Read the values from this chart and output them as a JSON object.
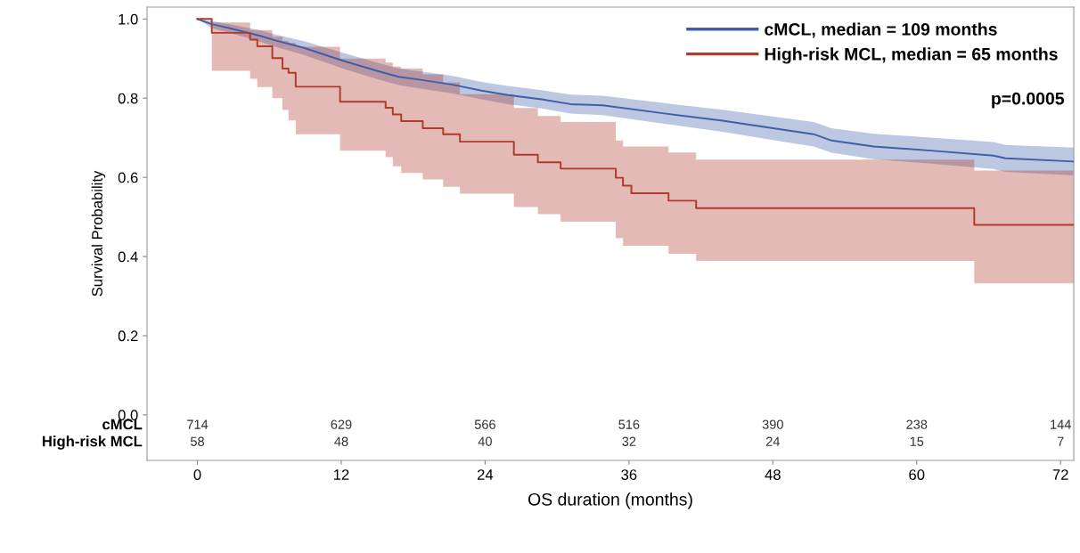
{
  "chart_data": {
    "type": "step",
    "xlabel": "OS duration (months)",
    "ylabel": "Survival Probability",
    "xlim": [
      -4.2,
      73.1
    ],
    "ylim": [
      -0.115,
      1.03
    ],
    "xticks": [
      0,
      12,
      24,
      36,
      48,
      60,
      72
    ],
    "yticks": [
      {
        "value": 0,
        "label": "0.0"
      },
      {
        "value": 0.2,
        "label": "0.2"
      },
      {
        "value": 0.4,
        "label": "0.4"
      },
      {
        "value": 0.6,
        "label": "0.6"
      },
      {
        "value": 0.8,
        "label": "0.8"
      },
      {
        "value": 1,
        "label": "1.0"
      }
    ],
    "legend": "top right",
    "grid": false,
    "marker": "none",
    "series": [
      {
        "name": "cMCL, median = 109 months",
        "type": "line",
        "color": "#3f5fa8",
        "x": [
          0,
          1.2,
          2.8,
          5.3,
          6.5,
          8.9,
          12.2,
          15.1,
          16.8,
          18.5,
          21.3,
          23.7,
          25.9,
          28.7,
          31.1,
          33.8,
          38.8,
          43.8,
          48.9,
          51.4,
          52.9,
          56.4,
          61.4,
          66.4,
          67.4,
          73.1
        ],
        "values": [
          1.0,
          0.987,
          0.976,
          0.957,
          0.946,
          0.927,
          0.894,
          0.868,
          0.854,
          0.847,
          0.834,
          0.819,
          0.808,
          0.797,
          0.785,
          0.782,
          0.762,
          0.743,
          0.72,
          0.709,
          0.693,
          0.678,
          0.667,
          0.655,
          0.648,
          0.64
        ],
        "lower": [
          1.0,
          0.977,
          0.964,
          0.942,
          0.93,
          0.909,
          0.874,
          0.847,
          0.833,
          0.825,
          0.812,
          0.797,
          0.785,
          0.774,
          0.761,
          0.757,
          0.736,
          0.715,
          0.69,
          0.678,
          0.662,
          0.646,
          0.634,
          0.621,
          0.614,
          0.605
        ],
        "upper": [
          1.0,
          0.995,
          0.986,
          0.971,
          0.961,
          0.944,
          0.914,
          0.889,
          0.875,
          0.868,
          0.856,
          0.841,
          0.831,
          0.82,
          0.809,
          0.806,
          0.788,
          0.771,
          0.75,
          0.74,
          0.724,
          0.71,
          0.7,
          0.689,
          0.682,
          0.675
        ]
      },
      {
        "name": "High-risk MCL, median = 65 months",
        "color": "#b03a2e",
        "x": [
          0,
          1.2,
          4.4,
          5.0,
          6.25,
          7.1,
          7.6,
          8.2,
          11.9,
          15.7,
          16.3,
          17.0,
          18.8,
          20.5,
          21.9,
          26.4,
          28.4,
          30.3,
          34.9,
          35.5,
          36.2,
          39.3,
          41.6,
          64.8,
          73.1
        ],
        "values": [
          1.0,
          0.965,
          0.948,
          0.931,
          0.901,
          0.875,
          0.864,
          0.829,
          0.791,
          0.776,
          0.759,
          0.742,
          0.724,
          0.709,
          0.69,
          0.657,
          0.638,
          0.622,
          0.599,
          0.579,
          0.56,
          0.541,
          0.522,
          0.48,
          0.48
        ],
        "lower": [
          1.0,
          0.869,
          0.849,
          0.828,
          0.8,
          0.77,
          0.744,
          0.709,
          0.667,
          0.651,
          0.628,
          0.611,
          0.595,
          0.576,
          0.559,
          0.525,
          0.507,
          0.488,
          0.446,
          0.427,
          0.427,
          0.407,
          0.389,
          0.332,
          0.332
        ],
        "upper": [
          1.0,
          0.991,
          0.972,
          0.972,
          0.955,
          0.945,
          0.94,
          0.93,
          0.9,
          0.89,
          0.88,
          0.875,
          0.86,
          0.84,
          0.81,
          0.775,
          0.755,
          0.74,
          0.693,
          0.678,
          0.678,
          0.663,
          0.645,
          0.617,
          0.6
        ]
      }
    ],
    "annotations": [
      "p=0.0005",
      "cMCL",
      "714",
      "629",
      "566",
      "516",
      "390",
      "238",
      "144",
      "High-risk MCL",
      "58",
      "48",
      "40",
      "32",
      "24",
      "15",
      "7"
    ]
  }
}
